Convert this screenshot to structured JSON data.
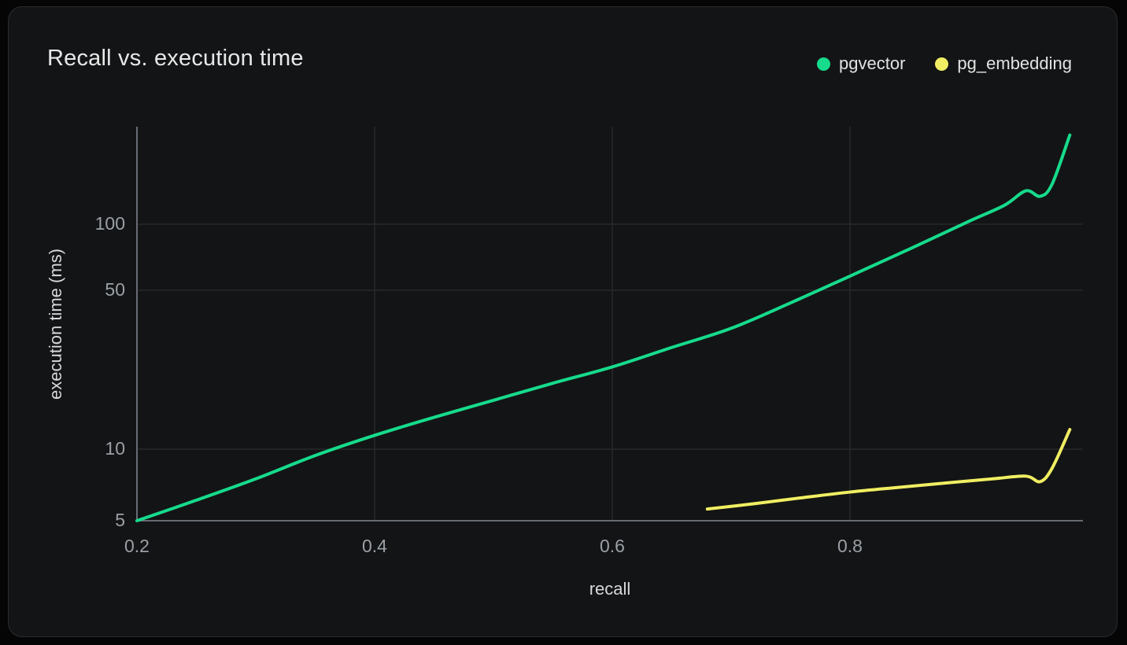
{
  "title": "Recall vs. execution time",
  "colors": {
    "background": "#050506",
    "card": "#131415",
    "card_border": "#2b2c2e",
    "title_text": "#e7e9e9",
    "tick_text": "#9aa0a6",
    "axis_label_text": "#d6d8da",
    "gridline": "#26282b",
    "axis_line": "#676c73",
    "pgvector": "#16db8c",
    "pg_embedding": "#f0ee62"
  },
  "legend": [
    {
      "label": "pgvector",
      "color": "#16db8c"
    },
    {
      "label": "pg_embedding",
      "color": "#f0ee62"
    }
  ],
  "axes": {
    "xlabel": "recall",
    "ylabel": "execution time (ms)",
    "x_tick_labels": [
      "0.2",
      "0.4",
      "0.6",
      "0.8"
    ],
    "y_tick_labels": [
      "5",
      "10",
      "50",
      "100"
    ]
  },
  "chart_data": {
    "type": "line",
    "title": "Recall vs. execution time",
    "xlabel": "recall",
    "ylabel": "execution time (ms)",
    "x_scale": "linear",
    "y_scale": "log",
    "x_range": [
      0.2,
      0.99
    ],
    "y_range": [
      5,
      300
    ],
    "x_ticks": [
      0.2,
      0.4,
      0.6,
      0.8
    ],
    "y_ticks": [
      5,
      10,
      50,
      100
    ],
    "grid": true,
    "legend_position": "top-right",
    "series": [
      {
        "name": "pgvector",
        "color": "#16db8c",
        "points": [
          [
            0.2,
            5.0
          ],
          [
            0.25,
            6.1
          ],
          [
            0.3,
            7.5
          ],
          [
            0.35,
            9.4
          ],
          [
            0.4,
            11.5
          ],
          [
            0.45,
            13.8
          ],
          [
            0.5,
            16.4
          ],
          [
            0.55,
            19.5
          ],
          [
            0.6,
            23
          ],
          [
            0.65,
            28
          ],
          [
            0.7,
            34
          ],
          [
            0.75,
            44
          ],
          [
            0.8,
            58
          ],
          [
            0.85,
            77
          ],
          [
            0.9,
            103
          ],
          [
            0.93,
            122
          ],
          [
            0.948,
            142
          ],
          [
            0.96,
            134
          ],
          [
            0.97,
            152
          ],
          [
            0.985,
            255
          ]
        ]
      },
      {
        "name": "pg_embedding",
        "color": "#f0ee62",
        "points": [
          [
            0.68,
            5.6
          ],
          [
            0.72,
            5.9
          ],
          [
            0.76,
            6.25
          ],
          [
            0.8,
            6.6
          ],
          [
            0.84,
            6.9
          ],
          [
            0.88,
            7.2
          ],
          [
            0.92,
            7.5
          ],
          [
            0.948,
            7.7
          ],
          [
            0.96,
            7.3
          ],
          [
            0.97,
            8.3
          ],
          [
            0.985,
            12.2
          ]
        ]
      }
    ]
  }
}
